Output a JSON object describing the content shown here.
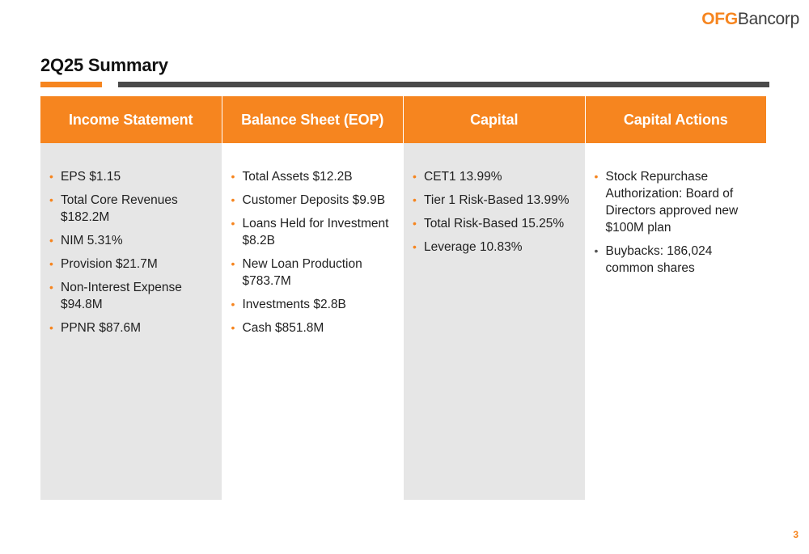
{
  "logo": {
    "bold": "OFG",
    "rest": "Bancorp"
  },
  "title": "2Q25 Summary",
  "columns": [
    {
      "header": "Income Statement",
      "items": [
        "EPS $1.15",
        "Total Core Revenues $182.2M",
        "NIM 5.31%",
        "Provision $21.7M",
        "Non-Interest Expense $94.8M",
        "PPNR $87.6M"
      ]
    },
    {
      "header": "Balance Sheet (EOP)",
      "items": [
        "Total Assets $12.2B",
        "Customer Deposits $9.9B",
        "Loans Held for Investment $8.2B",
        "New Loan Production $783.7M",
        "Investments $2.8B",
        "Cash $851.8M"
      ]
    },
    {
      "header": "Capital",
      "items": [
        "CET1 13.99%",
        "Tier 1 Risk-Based 13.99%",
        "Total Risk-Based 15.25%",
        "Leverage 10.83%"
      ]
    },
    {
      "header": "Capital Actions",
      "items": [
        "Stock Repurchase Authorization: Board of Directors approved new $100M plan",
        "Buybacks: 186,024 common shares"
      ]
    }
  ],
  "page_number": "3",
  "colors": {
    "accent": "#f6851f",
    "dark_bar": "#4a4a4a",
    "panel": "#e6e6e6"
  }
}
